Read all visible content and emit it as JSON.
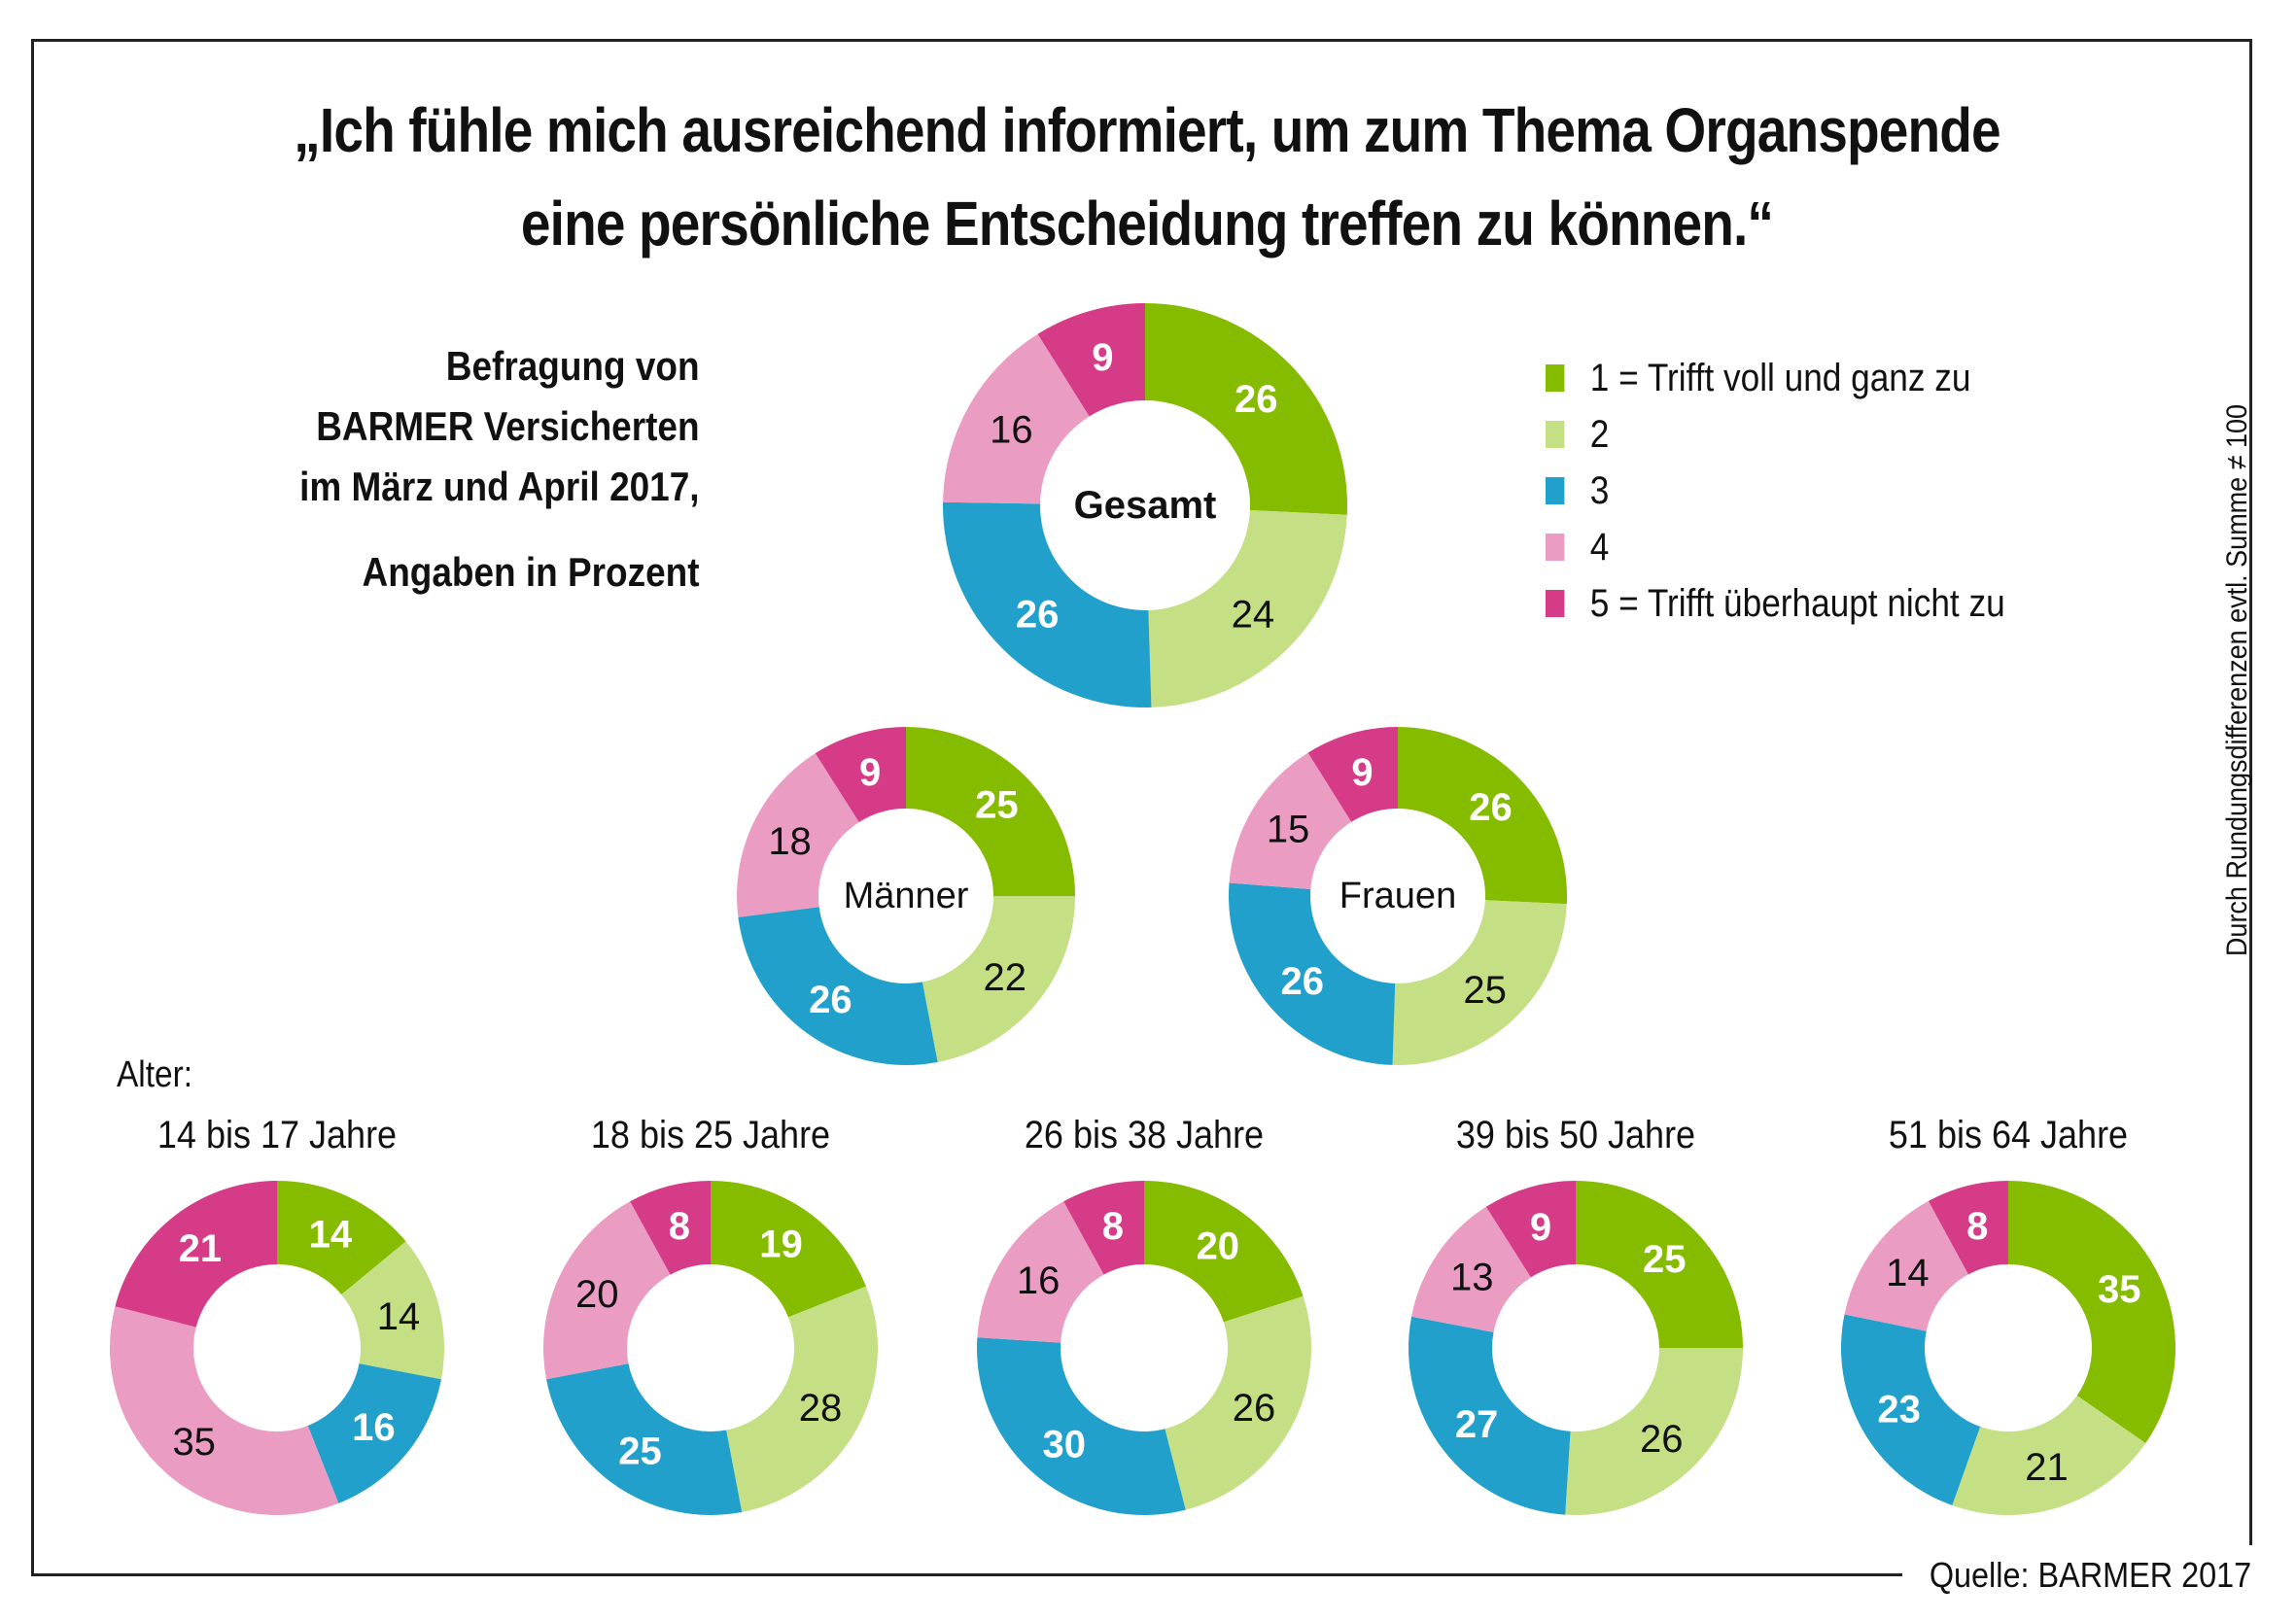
{
  "title": {
    "line1": "„Ich fühle mich ausreichend informiert, um zum Thema Organspende",
    "line2": "eine persönliche Entscheidung treffen zu können.“"
  },
  "survey_note": {
    "line1": "Befragung von",
    "line2": "BARMER Versicherten",
    "line3": "im März und April 2017,",
    "line4": "Angaben in Prozent"
  },
  "legend": [
    {
      "label": "1 = Trifft voll und ganz zu",
      "color": "#86bc00"
    },
    {
      "label": "2",
      "color": "#c4df84"
    },
    {
      "label": "3",
      "color": "#22a0cc"
    },
    {
      "label": "4",
      "color": "#eb9cc2"
    },
    {
      "label": "5 = Trifft überhaupt nicht zu",
      "color": "#d63b88"
    }
  ],
  "side_note": "Durch Rundungsdifferenzen evtl. Summe ≠ 100",
  "age_heading": "Alter:",
  "source": "Quelle: BARMER 2017",
  "chart_data": {
    "type": "pie",
    "variant": "donut",
    "title": "„Ich fühle mich ausreichend informiert, um zum Thema Organspende eine persönliche Entscheidung treffen zu können.“",
    "unit": "Prozent",
    "categories": [
      "1 = Trifft voll und ganz zu",
      "2",
      "3",
      "4",
      "5 = Trifft überhaupt nicht zu"
    ],
    "colors": [
      "#86bc00",
      "#c4df84",
      "#22a0cc",
      "#eb9cc2",
      "#d63b88"
    ],
    "label_colors": [
      "#ffffff",
      "#111111",
      "#ffffff",
      "#111111",
      "#ffffff"
    ],
    "legend_position": "top-right",
    "groups": [
      {
        "id": "gesamt",
        "name": "Gesamt",
        "values": [
          26,
          24,
          26,
          16,
          9
        ]
      },
      {
        "id": "maenner",
        "name": "Männer",
        "values": [
          25,
          22,
          26,
          18,
          9
        ]
      },
      {
        "id": "frauen",
        "name": "Frauen",
        "values": [
          26,
          25,
          26,
          15,
          9
        ]
      },
      {
        "id": "age-14-17",
        "name": "14 bis 17 Jahre",
        "values": [
          14,
          14,
          16,
          35,
          21
        ]
      },
      {
        "id": "age-18-25",
        "name": "18 bis 25 Jahre",
        "values": [
          19,
          28,
          25,
          20,
          8
        ]
      },
      {
        "id": "age-26-38",
        "name": "26 bis 38 Jahre",
        "values": [
          20,
          26,
          30,
          16,
          8
        ]
      },
      {
        "id": "age-39-50",
        "name": "39 bis 50 Jahre",
        "values": [
          25,
          26,
          27,
          13,
          9
        ]
      },
      {
        "id": "age-51-64",
        "name": "51 bis 64 Jahre",
        "values": [
          35,
          21,
          23,
          14,
          8
        ]
      }
    ]
  }
}
